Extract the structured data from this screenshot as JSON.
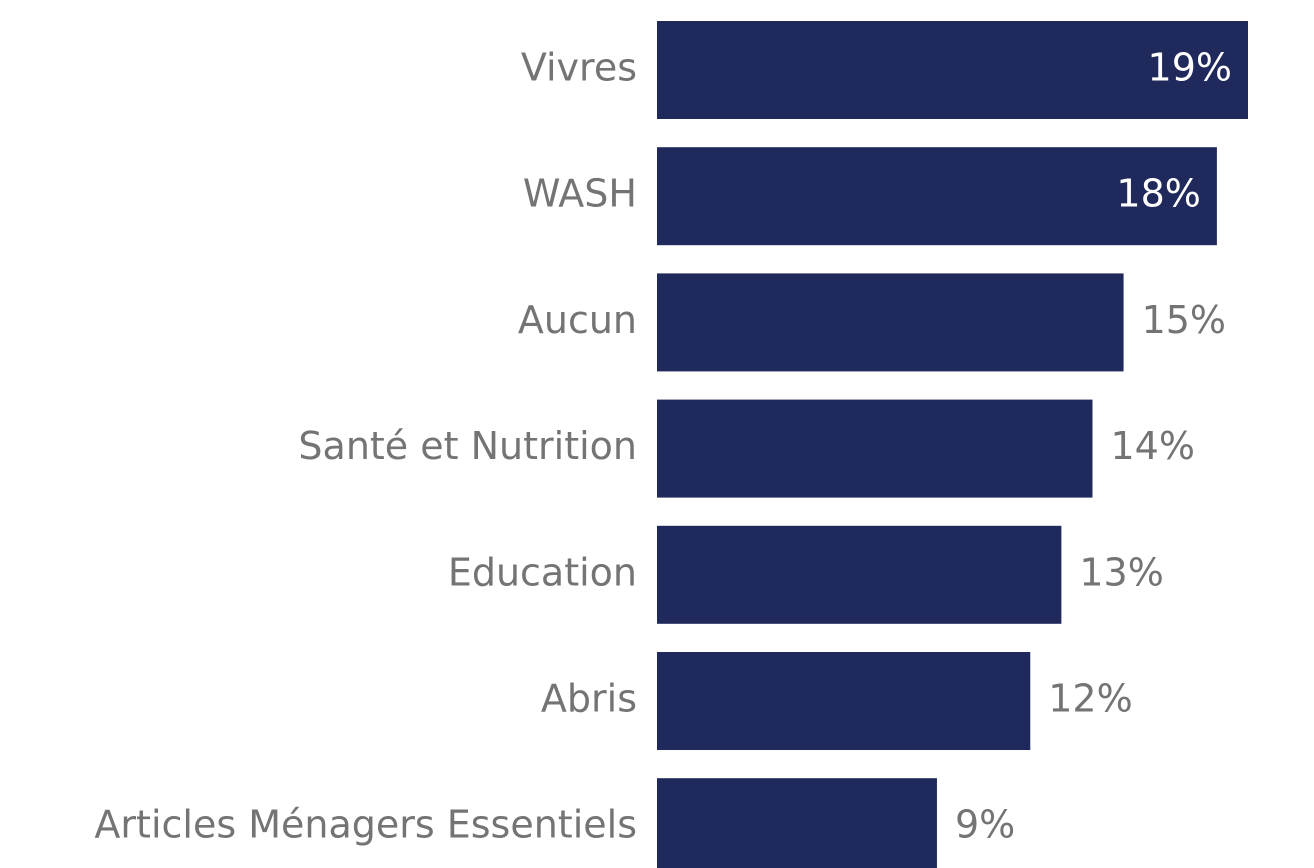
{
  "chart_data": {
    "type": "hbar",
    "categories": [
      "Vivres",
      "WASH",
      "Aucun",
      "Santé et Nutrition",
      "Education",
      "Abris",
      "Articles Ménagers Essentiels"
    ],
    "values": [
      19,
      18,
      15,
      14,
      13,
      12,
      9
    ],
    "value_labels": [
      "19%",
      "18%",
      "15%",
      "14%",
      "13%",
      "12%",
      "9%"
    ],
    "color": "#20295b"
  }
}
